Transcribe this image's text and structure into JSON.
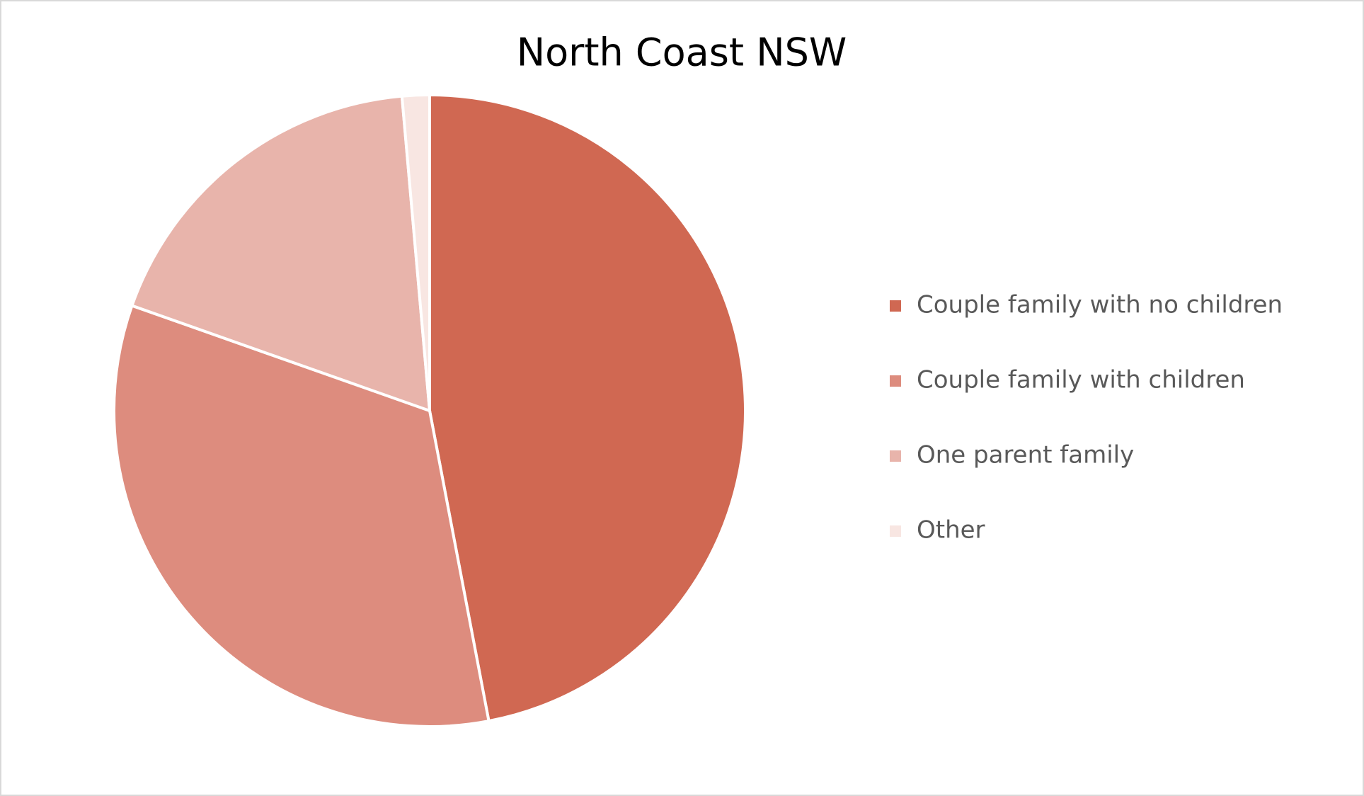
{
  "chart_data": {
    "type": "pie",
    "title": "North Coast NSW",
    "categories": [
      "Couple family with no children",
      "Couple family with children",
      "One parent family",
      "Other"
    ],
    "values": [
      47.0,
      33.4,
      18.2,
      1.4
    ],
    "colors": [
      "#d06852",
      "#dd8c7e",
      "#e8b4ab",
      "#f8e6e2"
    ],
    "legend": "right"
  }
}
